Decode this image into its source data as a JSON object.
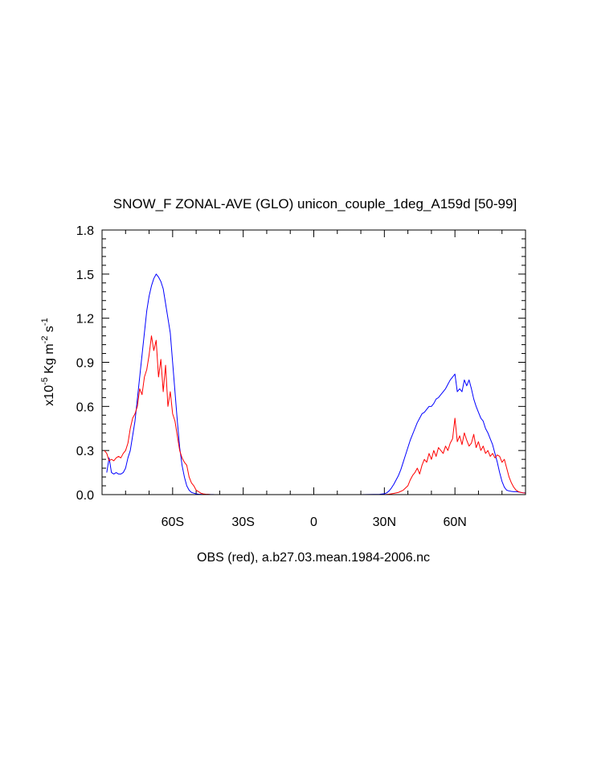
{
  "chart_data": {
    "type": "line",
    "title": "SNOW_F ZONAL-AVE (GLO) unicon_couple_1deg_A159d [50-99]",
    "ylabel": {
      "prefix": "x10",
      "exp1": "-5",
      "mid": " Kg m",
      "exp2": "-2",
      "mid2": " s",
      "exp3": "-1"
    },
    "xlabel": "OBS (red), a.b27.03.mean.1984-2006.nc",
    "xlim": [
      -90,
      90
    ],
    "ylim": [
      0,
      1.8
    ],
    "x_ticks": [
      {
        "value": -60,
        "label": "60S"
      },
      {
        "value": -30,
        "label": "30S"
      },
      {
        "value": 0,
        "label": "0"
      },
      {
        "value": 30,
        "label": "30N"
      },
      {
        "value": 60,
        "label": "60N"
      }
    ],
    "y_ticks": [
      {
        "value": 0,
        "label": "0.0"
      },
      {
        "value": 0.3,
        "label": "0.3"
      },
      {
        "value": 0.6,
        "label": "0.6"
      },
      {
        "value": 0.9,
        "label": "0.9"
      },
      {
        "value": 1.2,
        "label": "1.2"
      },
      {
        "value": 1.5,
        "label": "1.5"
      },
      {
        "value": 1.8,
        "label": "1.8"
      }
    ],
    "series": [
      {
        "color": "#0000ff",
        "x": [
          -88,
          -87,
          -86,
          -85,
          -84,
          -83,
          -82,
          -81,
          -80,
          -79,
          -78,
          -77,
          -76,
          -75,
          -74,
          -73,
          -72,
          -71,
          -70,
          -69,
          -68,
          -67,
          -66,
          -65,
          -64,
          -63,
          -62,
          -61,
          -60,
          -59,
          -58,
          -57,
          -56,
          -55,
          -54,
          -53,
          -52,
          -51,
          -50,
          -49,
          -48,
          -47,
          -46,
          -45,
          -44,
          -43,
          -42,
          -41,
          -40,
          -38,
          -35,
          -30,
          -20,
          -10,
          0,
          10,
          20,
          28,
          30,
          31,
          32,
          33,
          34,
          35,
          36,
          37,
          38,
          39,
          40,
          41,
          42,
          43,
          44,
          45,
          46,
          47,
          48,
          49,
          50,
          51,
          52,
          53,
          54,
          55,
          56,
          57,
          58,
          59,
          60,
          61,
          62,
          63,
          64,
          65,
          66,
          67,
          68,
          69,
          70,
          71,
          72,
          73,
          74,
          75,
          76,
          77,
          78,
          79,
          80,
          81,
          82,
          83,
          84,
          85,
          86,
          87,
          88,
          89,
          90
        ],
        "y": [
          0.15,
          0.25,
          0.15,
          0.14,
          0.15,
          0.14,
          0.14,
          0.15,
          0.18,
          0.25,
          0.3,
          0.4,
          0.5,
          0.65,
          0.8,
          0.95,
          1.1,
          1.25,
          1.35,
          1.42,
          1.47,
          1.5,
          1.48,
          1.45,
          1.4,
          1.3,
          1.2,
          1.1,
          0.9,
          0.7,
          0.5,
          0.32,
          0.2,
          0.12,
          0.06,
          0.03,
          0.015,
          0.01,
          0.005,
          0.003,
          0.002,
          0.001,
          0.001,
          0.001,
          0.001,
          0.001,
          0.0,
          0.0,
          0.0,
          0.0,
          0.0,
          0.0,
          0.0,
          0.0,
          0.0,
          0.0,
          0.0,
          0.002,
          0.006,
          0.012,
          0.025,
          0.045,
          0.07,
          0.1,
          0.13,
          0.17,
          0.22,
          0.27,
          0.32,
          0.37,
          0.41,
          0.45,
          0.49,
          0.52,
          0.55,
          0.56,
          0.58,
          0.6,
          0.6,
          0.62,
          0.65,
          0.66,
          0.68,
          0.7,
          0.72,
          0.75,
          0.78,
          0.8,
          0.82,
          0.7,
          0.72,
          0.7,
          0.78,
          0.74,
          0.78,
          0.72,
          0.65,
          0.6,
          0.56,
          0.52,
          0.5,
          0.45,
          0.42,
          0.38,
          0.34,
          0.28,
          0.22,
          0.15,
          0.09,
          0.05,
          0.03,
          0.025,
          0.022,
          0.02,
          0.02,
          0.018,
          0.015,
          0.012,
          0.012
        ]
      },
      {
        "color": "#ff0000",
        "x": [
          -89,
          -88,
          -87,
          -86,
          -85,
          -84,
          -83,
          -82,
          -81,
          -80,
          -79,
          -78,
          -77,
          -76,
          -75,
          -74,
          -73,
          -72,
          -71,
          -70,
          -69,
          -68,
          -67,
          -66,
          -65,
          -64,
          -63,
          -62,
          -61,
          -60,
          -59,
          -58,
          -57,
          -56,
          -55,
          -54,
          -53,
          -52,
          -51,
          -50,
          -49,
          -48,
          -47,
          -46,
          -45,
          -44,
          -42,
          -40,
          -38,
          -35,
          -30,
          -20,
          -10,
          0,
          10,
          20,
          30,
          32,
          34,
          36,
          38,
          40,
          41,
          42,
          43,
          44,
          45,
          46,
          47,
          48,
          49,
          50,
          51,
          52,
          53,
          54,
          55,
          56,
          57,
          58,
          59,
          60,
          61,
          62,
          63,
          64,
          65,
          66,
          67,
          68,
          69,
          70,
          71,
          72,
          73,
          74,
          75,
          76,
          77,
          78,
          79,
          80,
          81,
          82,
          83,
          84,
          85,
          86,
          87,
          88,
          89,
          90
        ],
        "y": [
          0.3,
          0.28,
          0.23,
          0.24,
          0.23,
          0.25,
          0.26,
          0.25,
          0.28,
          0.3,
          0.35,
          0.45,
          0.52,
          0.55,
          0.6,
          0.72,
          0.68,
          0.8,
          0.85,
          0.95,
          1.08,
          0.98,
          1.05,
          0.8,
          0.92,
          0.7,
          0.88,
          0.6,
          0.7,
          0.55,
          0.5,
          0.4,
          0.3,
          0.25,
          0.22,
          0.2,
          0.12,
          0.08,
          0.06,
          0.03,
          0.02,
          0.01,
          0.005,
          0.003,
          0.002,
          0.001,
          0.0,
          0.0,
          0.0,
          0.0,
          0.0,
          0.0,
          0.0,
          0.0,
          0.0,
          0.0,
          0.0,
          0.003,
          0.008,
          0.015,
          0.03,
          0.06,
          0.1,
          0.13,
          0.15,
          0.18,
          0.14,
          0.2,
          0.24,
          0.22,
          0.28,
          0.24,
          0.3,
          0.26,
          0.32,
          0.3,
          0.28,
          0.33,
          0.3,
          0.35,
          0.38,
          0.52,
          0.36,
          0.4,
          0.34,
          0.42,
          0.37,
          0.33,
          0.35,
          0.41,
          0.32,
          0.36,
          0.3,
          0.33,
          0.28,
          0.3,
          0.26,
          0.28,
          0.25,
          0.27,
          0.26,
          0.22,
          0.24,
          0.18,
          0.12,
          0.08,
          0.05,
          0.03,
          0.02,
          0.015,
          0.012,
          0.01
        ]
      }
    ]
  }
}
